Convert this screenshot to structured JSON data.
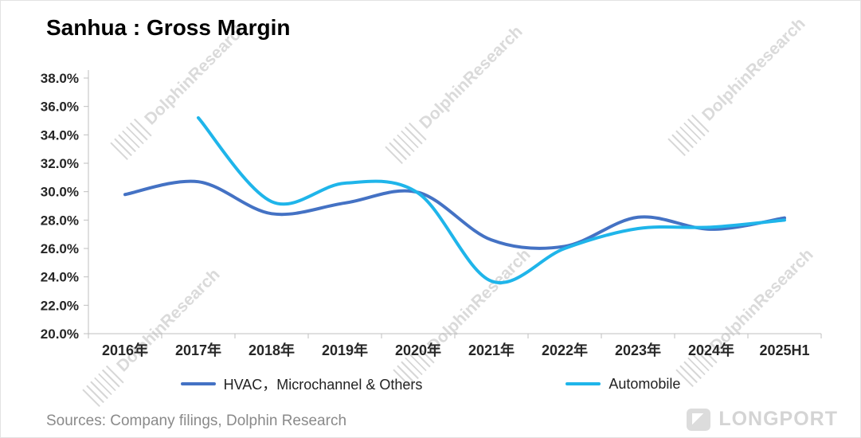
{
  "title": "Sanhua : Gross Margin",
  "source": "Sources: Company filings, Dolphin Research",
  "watermark": "DolphinResearch",
  "logo": "LONGPORT",
  "chart_data": {
    "type": "line",
    "title": "Sanhua : Gross Margin",
    "categories": [
      "2016年",
      "2017年",
      "2018年",
      "2019年",
      "2020年",
      "2021年",
      "2022年",
      "2023年",
      "2024年",
      "2025H1"
    ],
    "series": [
      {
        "name": "HVAC，Microchannel & Others",
        "color": "#4472C4",
        "values": [
          29.8,
          30.7,
          28.45,
          29.2,
          29.95,
          26.6,
          26.15,
          28.2,
          27.35,
          28.15
        ]
      },
      {
        "name": "Automobile",
        "color": "#1FB5EA",
        "values": [
          null,
          35.2,
          29.3,
          30.6,
          29.9,
          23.7,
          26.0,
          27.4,
          27.5,
          28.0
        ]
      }
    ],
    "xlabel": "",
    "ylabel": "",
    "ylim": [
      20,
      38
    ],
    "ytick_step": 2,
    "ytick_format": "0.0%",
    "grid": false,
    "legend_position": "bottom"
  }
}
